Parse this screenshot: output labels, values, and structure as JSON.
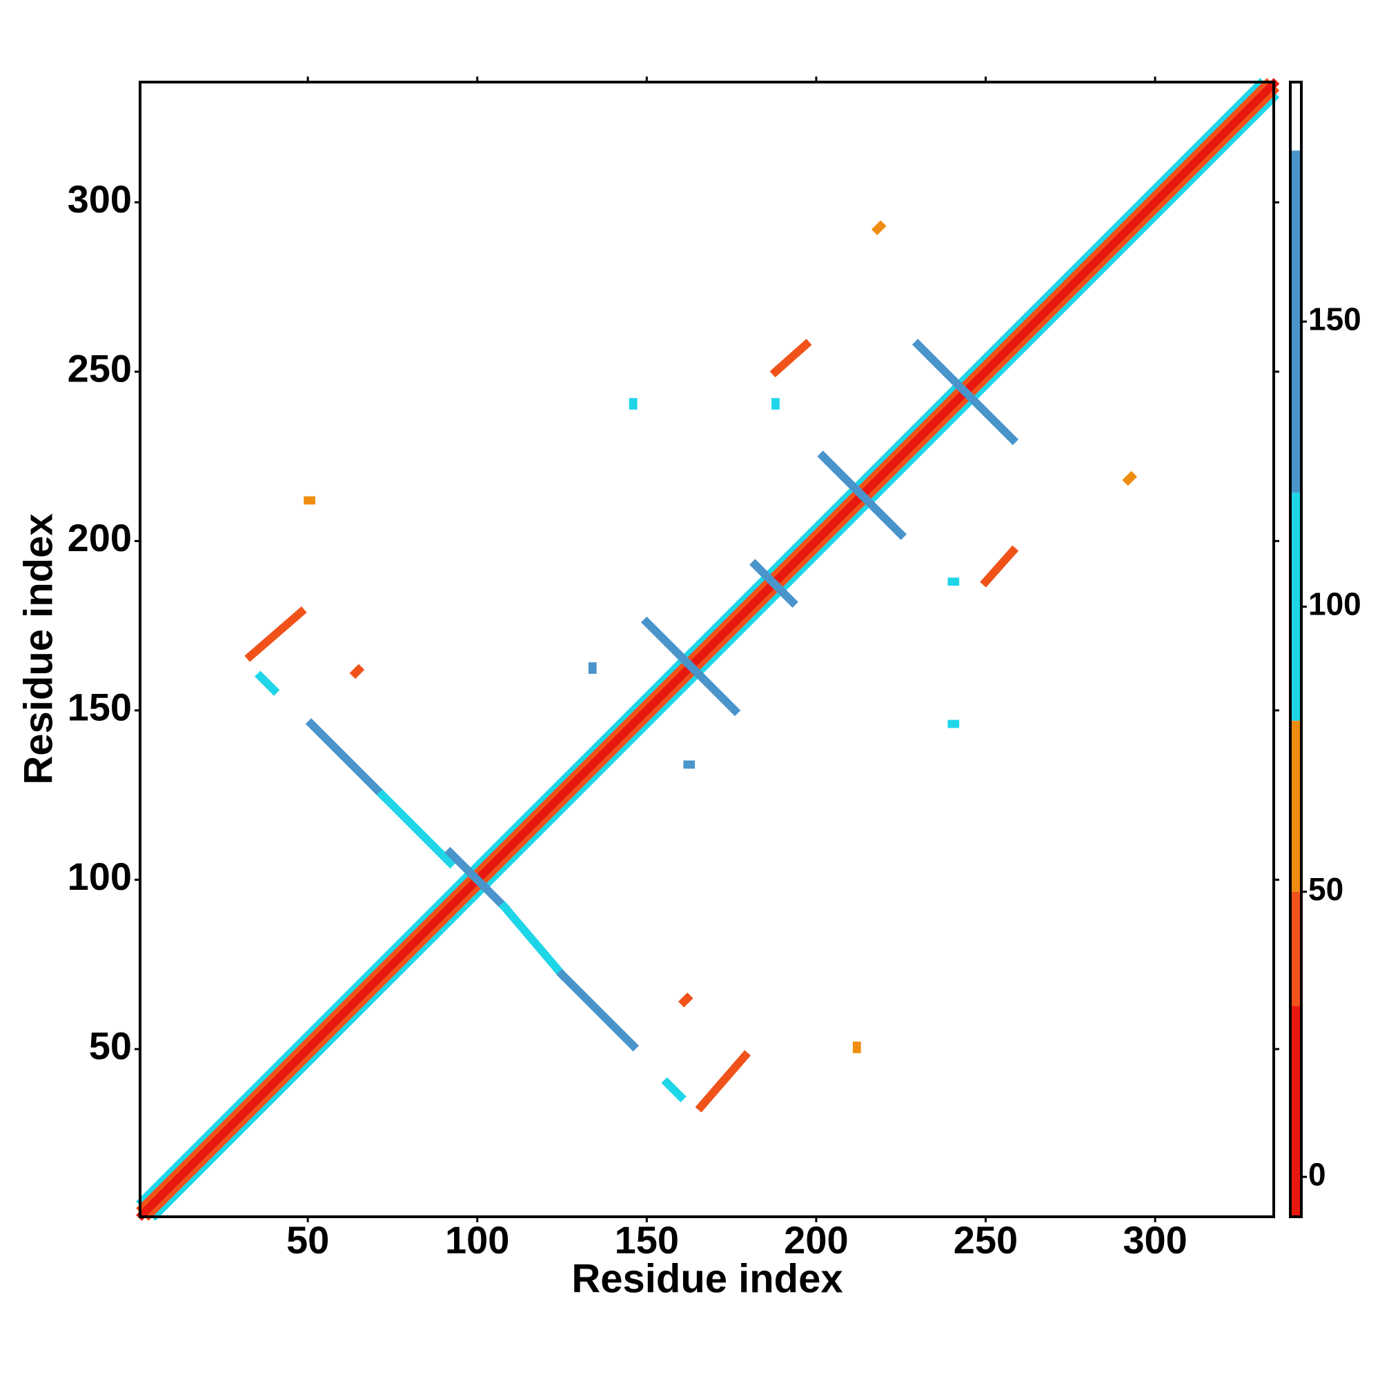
{
  "chart_data": {
    "type": "contact-map",
    "xlabel": "Residue index",
    "ylabel": "Residue index",
    "xlim": [
      0.5,
      335
    ],
    "ylim": [
      0.5,
      335.5
    ],
    "xticks": [
      50,
      100,
      150,
      200,
      250,
      300
    ],
    "yticks": [
      50,
      100,
      150,
      200,
      250,
      300
    ],
    "segments": {
      "x0": [
        1,
        5,
        1,
        3,
        1,
        51,
        72,
        92,
        108,
        125,
        150,
        182,
        202,
        230,
        33,
        166,
        188,
        250,
        64,
        161,
        218,
        292,
        50,
        212,
        36,
        160,
        240,
        146,
        162,
        134,
        240,
        188
      ],
      "y0": [
        5,
        1,
        3,
        1,
        1,
        146,
        125,
        108,
        92,
        72,
        176,
        193,
        225,
        258,
        166,
        33,
        250,
        188,
        161,
        64,
        292,
        218,
        212,
        50,
        160,
        36,
        146,
        240,
        134,
        162,
        188,
        240
      ],
      "x1": [
        331,
        335,
        333,
        335,
        335,
        72,
        92,
        108,
        125,
        146,
        176,
        193,
        225,
        258,
        48,
        179,
        197,
        258,
        65,
        162,
        219,
        293,
        51,
        212,
        40,
        156,
        241,
        146,
        163,
        134,
        241,
        188
      ],
      "y1": [
        335,
        331,
        335,
        333,
        335,
        125,
        105,
        92,
        72,
        51,
        150,
        182,
        202,
        230,
        179,
        48,
        258,
        197,
        162,
        65,
        293,
        219,
        212,
        51,
        156,
        40,
        146,
        241,
        134,
        163,
        188,
        241
      ],
      "values": [
        100,
        100,
        45,
        45,
        10,
        150,
        100,
        140,
        100,
        150,
        140,
        130,
        130,
        140,
        30,
        30,
        35,
        35,
        45,
        45,
        55,
        55,
        60,
        60,
        100,
        100,
        100,
        100,
        130,
        130,
        100,
        100
      ]
    },
    "colorbar": {
      "lim": [
        -7,
        192
      ],
      "ticks": [
        0,
        50,
        100,
        150
      ],
      "bins": [
        -7,
        30,
        50,
        80,
        120,
        180,
        192
      ],
      "colors": [
        "#e8180e",
        "#f0521a",
        "#f08c10",
        "#1ed6e8",
        "#4a94cc",
        "#ffffff"
      ]
    }
  }
}
